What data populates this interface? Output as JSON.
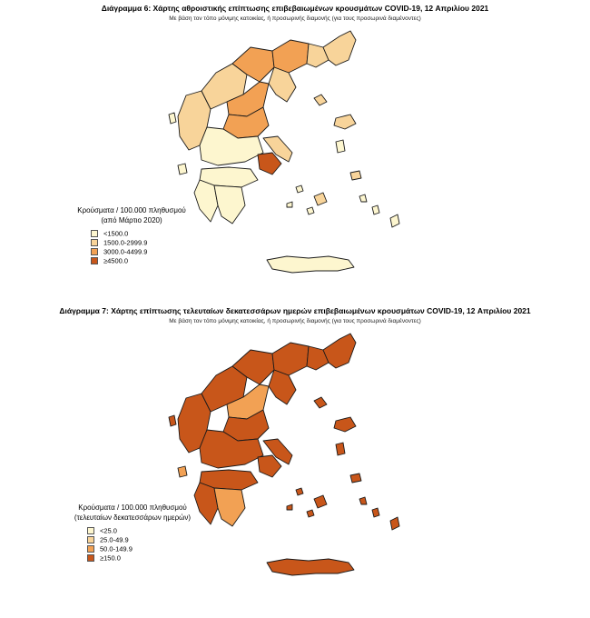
{
  "map1": {
    "title": "Διάγραμμα 6: Χάρτης αθροιστικής επίπτωσης επιβεβαιωμένων κρουσμάτων COVID-19, 12 Απριλίου 2021",
    "subtitle": "Με βάση τον τόπο μόνιμης κατοικίας, ή προσωρινής διαμονής (για τους προσωρινά διαμένοντες)",
    "legend": {
      "title_line1": "Κρούσματα / 100.000 πληθυσμού",
      "title_line2": "(από Μάρτιο 2020)",
      "items": [
        {
          "label": "<1500.0",
          "color": "#fdf6cf"
        },
        {
          "label": "1500.0-2999.9",
          "color": "#f8d49a"
        },
        {
          "label": "3000.0-4499.9",
          "color": "#f2a154"
        },
        {
          "label": "≥4500.0",
          "color": "#c8561a"
        }
      ]
    }
  },
  "map2": {
    "title": "Διάγραμμα 7: Χάρτης επίπτωσης τελευταίων δεκατεσσάρων ημερών επιβεβαιωμένων κρουσμάτων COVID-19, 12 Απριλίου 2021",
    "subtitle": "Με βάση τον τόπο μόνιμης κατοικίας, ή προσωρινής διαμονής (για τους προσωρινά διαμένοντες)",
    "legend": {
      "title_line1": "Κρούσματα / 100.000 πληθυσμού",
      "title_line2": "(τελευταίων δεκατεσσάρων ημερών)",
      "items": [
        {
          "label": "<25.0",
          "color": "#fdf6cf"
        },
        {
          "label": "25.0-49.9",
          "color": "#f8d49a"
        },
        {
          "label": "50.0-149.9",
          "color": "#f2a154"
        },
        {
          "label": "≥150.0",
          "color": "#c8561a"
        }
      ]
    }
  }
}
